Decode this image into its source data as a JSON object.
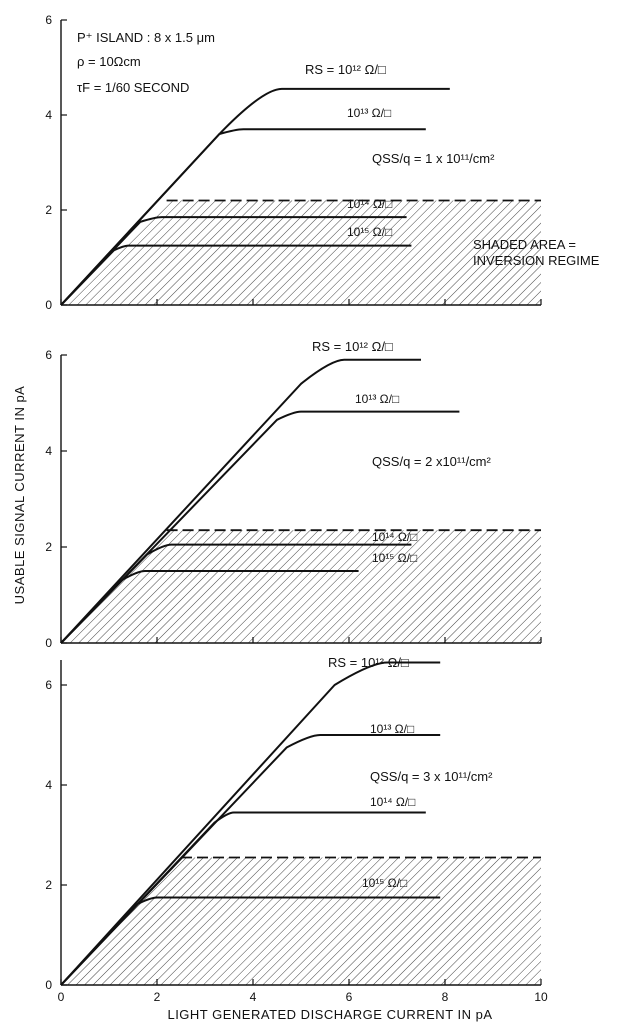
{
  "chart_data": [
    {
      "type": "line",
      "panel": "top",
      "x_range": [
        0,
        10
      ],
      "ylim": [
        0,
        6
      ],
      "x_ticks": [
        "0",
        "2",
        "4",
        "6",
        "8",
        "10"
      ],
      "y_ticks": [
        "0",
        "2",
        "4",
        "6"
      ],
      "params": {
        "island": "P⁺ ISLAND : 8 x 1.5 μm",
        "rho": "ρ = 10Ωcm",
        "tau": "τF = 1/60 SECOND"
      },
      "qss_label": "QSS/q = 1 x 10¹¹/cm²",
      "shaded_label": [
        "SHADED AREA =",
        "INVERSION REGIME"
      ],
      "shade_level": 2.2,
      "shade_x_range": [
        2.2,
        10
      ],
      "series": [
        {
          "name": "RS = 10¹² Ω/□",
          "points": [
            [
              0,
              0
            ],
            [
              3.3,
              3.6
            ],
            [
              4.6,
              4.55
            ],
            [
              8.1,
              4.55
            ]
          ]
        },
        {
          "name": "10¹³ Ω/□",
          "points": [
            [
              0,
              0
            ],
            [
              3.3,
              3.6
            ],
            [
              3.8,
              3.7
            ],
            [
              7.6,
              3.7
            ]
          ]
        },
        {
          "name": "10¹⁴ Ω/□",
          "points": [
            [
              0,
              0
            ],
            [
              1.65,
              1.75
            ],
            [
              2.1,
              1.85
            ],
            [
              7.2,
              1.85
            ]
          ]
        },
        {
          "name": "10¹⁵ Ω/□",
          "points": [
            [
              0,
              0
            ],
            [
              1.1,
              1.15
            ],
            [
              1.4,
              1.25
            ],
            [
              7.3,
              1.25
            ]
          ]
        }
      ]
    },
    {
      "type": "line",
      "panel": "middle",
      "x_range": [
        0,
        10
      ],
      "ylim": [
        0,
        6
      ],
      "x_ticks": [
        "0",
        "2",
        "4",
        "6",
        "8",
        "10"
      ],
      "y_ticks": [
        "0",
        "2",
        "4",
        "6"
      ],
      "qss_label": "QSS/q = 2 x10¹¹/cm²",
      "shade_level": 2.35,
      "shade_x_range": [
        2.2,
        10
      ],
      "series": [
        {
          "name": "RS = 10¹² Ω/□",
          "points": [
            [
              0,
              0
            ],
            [
              5.0,
              5.4
            ],
            [
              5.9,
              5.9
            ],
            [
              7.5,
              5.9
            ]
          ]
        },
        {
          "name": "10¹³ Ω/□",
          "points": [
            [
              0,
              0
            ],
            [
              4.5,
              4.65
            ],
            [
              5.0,
              4.82
            ],
            [
              8.3,
              4.82
            ]
          ]
        },
        {
          "name": "10¹⁴ Ω/□",
          "points": [
            [
              0,
              0
            ],
            [
              1.8,
              1.85
            ],
            [
              2.3,
              2.05
            ],
            [
              7.3,
              2.05
            ]
          ]
        },
        {
          "name": "10¹⁵ Ω/□",
          "points": [
            [
              0,
              0
            ],
            [
              1.25,
              1.3
            ],
            [
              1.75,
              1.5
            ],
            [
              6.2,
              1.5
            ]
          ]
        }
      ]
    },
    {
      "type": "line",
      "panel": "bottom",
      "x_range": [
        0,
        10
      ],
      "ylim": [
        0,
        6.5
      ],
      "x_ticks": [
        "0",
        "2",
        "4",
        "6",
        "8",
        "10"
      ],
      "y_ticks": [
        "0",
        "2",
        "4",
        "6"
      ],
      "qss_label": "QSS/q = 3 x 10¹¹/cm²",
      "shade_level": 2.55,
      "shade_x_range": [
        2.5,
        10
      ],
      "series": [
        {
          "name": "RS = 10¹² Ω/□",
          "points": [
            [
              0,
              0
            ],
            [
              5.7,
              6.0
            ],
            [
              6.8,
              6.45
            ],
            [
              7.9,
              6.45
            ]
          ]
        },
        {
          "name": "10¹³ Ω/□",
          "points": [
            [
              0,
              0
            ],
            [
              4.7,
              4.75
            ],
            [
              5.4,
              5.0
            ],
            [
              7.9,
              5.0
            ]
          ]
        },
        {
          "name": "10¹⁴ Ω/□",
          "points": [
            [
              0,
              0
            ],
            [
              3.2,
              3.25
            ],
            [
              3.6,
              3.45
            ],
            [
              7.6,
              3.45
            ]
          ]
        },
        {
          "name": "10¹⁵ Ω/□",
          "points": [
            [
              0,
              0
            ],
            [
              1.55,
              1.6
            ],
            [
              2.0,
              1.75
            ],
            [
              7.9,
              1.75
            ]
          ]
        }
      ]
    }
  ],
  "axes": {
    "y_title": "USABLE SIGNAL CURRENT IN pA",
    "x_title": "LIGHT GENERATED DISCHARGE CURRENT IN pA"
  }
}
